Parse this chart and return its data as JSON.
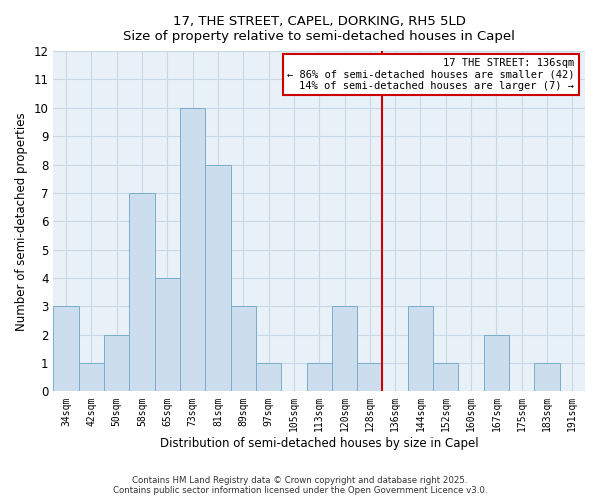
{
  "title": "17, THE STREET, CAPEL, DORKING, RH5 5LD",
  "subtitle": "Size of property relative to semi-detached houses in Capel",
  "xlabel": "Distribution of semi-detached houses by size in Capel",
  "ylabel": "Number of semi-detached properties",
  "categories": [
    "34sqm",
    "42sqm",
    "50sqm",
    "58sqm",
    "65sqm",
    "73sqm",
    "81sqm",
    "89sqm",
    "97sqm",
    "105sqm",
    "113sqm",
    "120sqm",
    "128sqm",
    "136sqm",
    "144sqm",
    "152sqm",
    "160sqm",
    "167sqm",
    "175sqm",
    "183sqm",
    "191sqm"
  ],
  "values": [
    3,
    1,
    2,
    7,
    4,
    10,
    8,
    3,
    1,
    0,
    1,
    3,
    1,
    0,
    3,
    1,
    0,
    2,
    0,
    1,
    0
  ],
  "bar_color": "#ccdded",
  "bar_edge_color": "#7aadcc",
  "grid_color": "#c8d8e4",
  "background_color": "#ffffff",
  "plot_bg_color": "#e8f0f8",
  "marker_index": 13,
  "marker_color": "#cc0000",
  "legend_line1": "17 THE STREET: 136sqm",
  "legend_line2": "← 86% of semi-detached houses are smaller (42)",
  "legend_line3": "14% of semi-detached houses are larger (7) →",
  "footer_line1": "Contains HM Land Registry data © Crown copyright and database right 2025.",
  "footer_line2": "Contains public sector information licensed under the Open Government Licence v3.0.",
  "ylim": [
    0,
    12
  ],
  "yticks": [
    0,
    1,
    2,
    3,
    4,
    5,
    6,
    7,
    8,
    9,
    10,
    11,
    12
  ]
}
